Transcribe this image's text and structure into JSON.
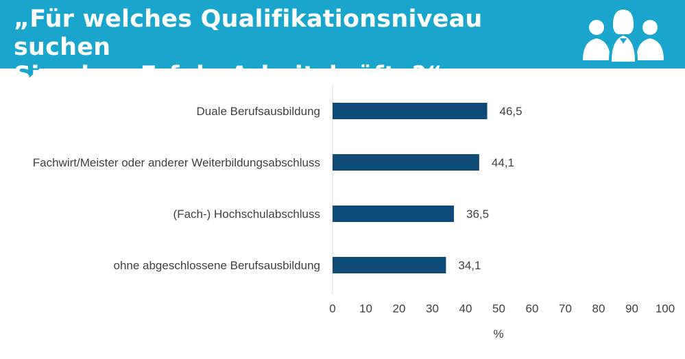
{
  "header": {
    "title_line1": "„Für welches Qualifikationsniveau suchen",
    "title_line2": "Sie ohne Erfolg Arbeitskräfte?“",
    "icon": "people-group-icon",
    "color": "#1aa6cc"
  },
  "chart_data": {
    "type": "bar",
    "orientation": "horizontal",
    "categories": [
      "Duale Berufsausbildung",
      "Fachwirt/Meister oder anderer Weiterbildungsabschluss",
      "(Fach-) Hochschulabschluss",
      "ohne abgeschlossene Berufsausbildung"
    ],
    "values": [
      46.5,
      44.1,
      36.5,
      34.1
    ],
    "value_labels": [
      "46,5",
      "44,1",
      "36,5",
      "34,1"
    ],
    "xlabel": "%",
    "ylabel": "",
    "xlim": [
      0,
      100
    ],
    "ticks": [
      0,
      10,
      20,
      30,
      40,
      50,
      60,
      70,
      80,
      90,
      100
    ],
    "tick_labels": [
      "0",
      "10",
      "20",
      "30",
      "40",
      "50",
      "60",
      "70",
      "80",
      "90",
      "100"
    ],
    "bar_color": "#0d4a78",
    "grid": false
  }
}
